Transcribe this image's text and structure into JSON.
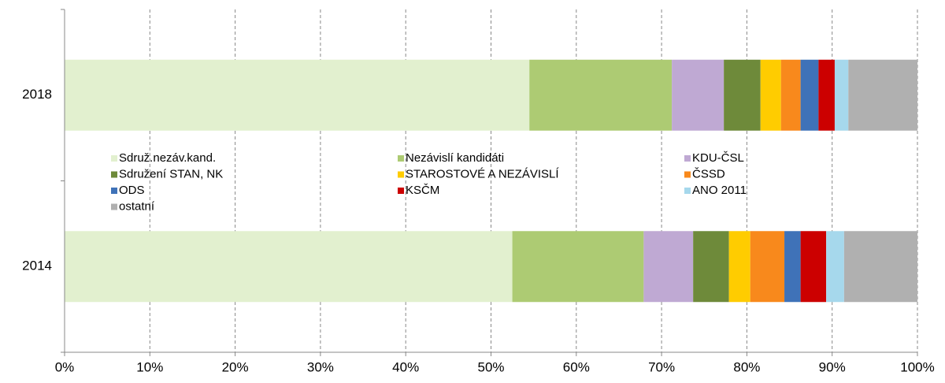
{
  "chart_data": {
    "type": "stacked_barh",
    "categories": [
      "2018",
      "2014"
    ],
    "series": [
      {
        "name": "Sdruž.nezáv.kand.",
        "color": "#e2f0cf",
        "values": [
          54.5,
          52.5
        ]
      },
      {
        "name": "Nezávislí kandidáti",
        "color": "#adcb73",
        "values": [
          16.7,
          15.4
        ]
      },
      {
        "name": "KDU-ČSL",
        "color": "#bfa9d3",
        "values": [
          6.1,
          5.8
        ]
      },
      {
        "name": "Sdružení STAN, NK",
        "color": "#6e8a3a",
        "values": [
          4.3,
          4.2
        ]
      },
      {
        "name": "STAROSTOVÉ A NEZÁVISLÍ",
        "color": "#ffcc00",
        "values": [
          2.4,
          2.5
        ]
      },
      {
        "name": "ČSSD",
        "color": "#f8891c",
        "values": [
          2.3,
          4.0
        ]
      },
      {
        "name": "ODS",
        "color": "#3f72b8",
        "values": [
          2.1,
          1.9
        ]
      },
      {
        "name": "KSČM",
        "color": "#cc0000",
        "values": [
          1.9,
          3.0
        ]
      },
      {
        "name": "ANO 2011",
        "color": "#a6d8ec",
        "values": [
          1.6,
          2.1
        ]
      },
      {
        "name": "ostatní",
        "color": "#b0b0b0",
        "values": [
          8.1,
          8.6
        ]
      }
    ],
    "xlim": [
      0,
      100
    ],
    "xticks": [
      {
        "value": 0,
        "label": "0%"
      },
      {
        "value": 10,
        "label": "10%"
      },
      {
        "value": 20,
        "label": "20%"
      },
      {
        "value": 30,
        "label": "30%"
      },
      {
        "value": 40,
        "label": "40%"
      },
      {
        "value": 50,
        "label": "50%"
      },
      {
        "value": 60,
        "label": "60%"
      },
      {
        "value": 70,
        "label": "70%"
      },
      {
        "value": 80,
        "label": "80%"
      },
      {
        "value": 90,
        "label": "90%"
      },
      {
        "value": 100,
        "label": "100%"
      }
    ],
    "grid": true
  }
}
